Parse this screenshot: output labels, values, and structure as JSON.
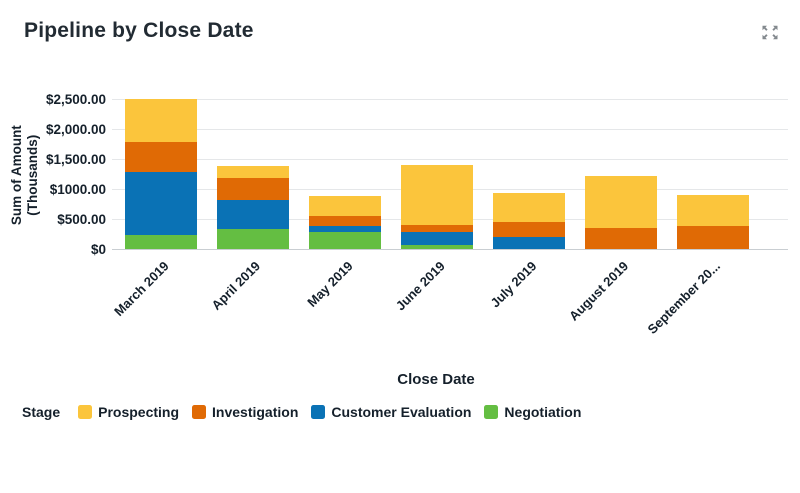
{
  "header": {
    "title": "Pipeline by Close Date"
  },
  "icons": {
    "expand_color": "#83898e"
  },
  "chart_data": {
    "type": "bar",
    "stacked": true,
    "title": "Pipeline by Close Date",
    "xlabel": "Close Date",
    "ylabel": "Sum of Amount (Thousands)",
    "ylabel_lines": [
      "Sum of Amount",
      "(Thousands)"
    ],
    "legend_label": "Stage",
    "legend_position": "bottom",
    "grid": true,
    "ylim": [
      0,
      2500
    ],
    "categories": [
      "March 2019",
      "April 2019",
      "May 2019",
      "June 2019",
      "July 2019",
      "August 2019",
      "September 20..."
    ],
    "y_tick_labels": [
      "$2,500.00",
      "$2,000.00",
      "$1,500.00",
      "$1000.00",
      "$500.00",
      "$0"
    ],
    "y_tick_values": [
      2500,
      2000,
      1500,
      1000,
      500,
      0
    ],
    "series": [
      {
        "name": "Prospecting",
        "color": "#FBC53C",
        "values": [
          720,
          200,
          335,
          1000,
          475,
          855,
          510
        ]
      },
      {
        "name": "Investigation",
        "color": "#E06A05",
        "values": [
          500,
          360,
          155,
          120,
          260,
          355,
          390
        ]
      },
      {
        "name": "Customer Evaluation",
        "color": "#0A72B5",
        "values": [
          1040,
          490,
          100,
          210,
          195,
          0,
          0
        ]
      },
      {
        "name": "Negotiation",
        "color": "#64BE42",
        "values": [
          240,
          330,
          290,
          70,
          0,
          0,
          0
        ]
      }
    ]
  }
}
